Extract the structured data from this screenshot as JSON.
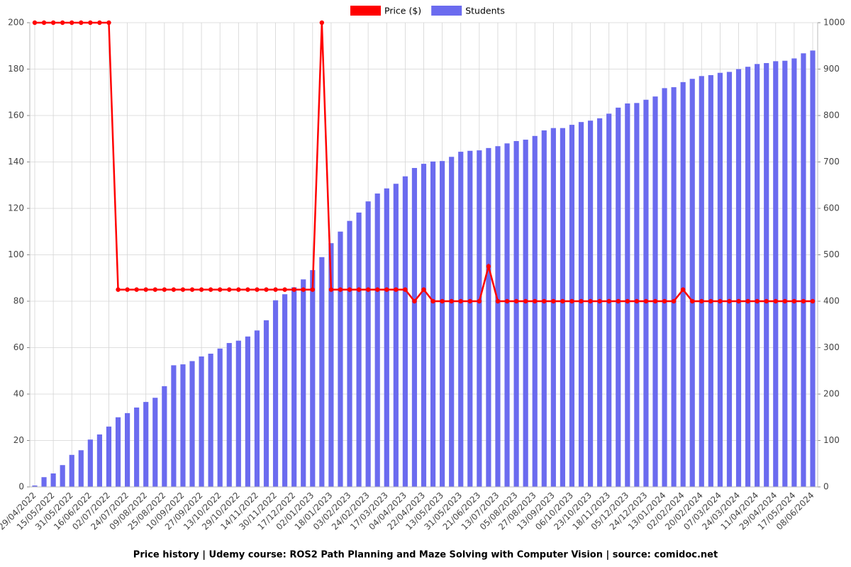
{
  "chart_data": {
    "type": "bar_line",
    "title": "Price history | Udemy course: ROS2 Path Planning and Maze Solving with Computer Vision | source: comidoc.net",
    "categories": [
      "29/04/2022",
      null,
      "15/05/2022",
      null,
      "31/05/2022",
      null,
      "16/06/2022",
      null,
      "02/07/2022",
      null,
      "24/07/2022",
      null,
      "09/08/2022",
      null,
      "25/08/2022",
      null,
      "10/09/2022",
      null,
      "27/09/2022",
      null,
      "13/10/2022",
      null,
      "29/10/2022",
      null,
      "14/11/2022",
      null,
      "30/11/2022",
      null,
      "17/12/2022",
      null,
      "02/01/2023",
      null,
      "18/01/2023",
      null,
      "03/02/2023",
      null,
      "24/02/2023",
      null,
      "17/03/2023",
      null,
      "04/04/2023",
      null,
      "22/04/2023",
      null,
      "13/05/2023",
      null,
      "31/05/2023",
      null,
      "21/06/2023",
      null,
      "13/07/2023",
      null,
      "05/08/2023",
      null,
      "27/08/2023",
      null,
      "13/09/2023",
      null,
      "06/10/2023",
      null,
      "23/10/2023",
      null,
      "18/11/2023",
      null,
      "05/12/2023",
      null,
      "24/12/2023",
      null,
      "13/01/2024",
      null,
      "02/02/2024",
      null,
      "20/02/2024",
      null,
      "07/03/2024",
      null,
      "24/03/2024",
      null,
      "11/04/2024",
      null,
      "29/04/2024",
      null,
      "17/05/2024",
      null,
      "08/06/2024"
    ],
    "series": [
      {
        "name": "Price ($)",
        "type": "line",
        "axis": "y",
        "color": "#ff0000",
        "values": [
          200,
          200,
          200,
          200,
          200,
          200,
          200,
          200,
          200,
          85,
          85,
          85,
          85,
          85,
          85,
          85,
          85,
          85,
          85,
          85,
          85,
          85,
          85,
          85,
          85,
          85,
          85,
          85,
          85,
          85,
          85,
          200,
          85,
          85,
          85,
          85,
          85,
          85,
          85,
          85,
          85,
          80,
          85,
          80,
          80,
          80,
          80,
          80,
          80,
          95,
          80,
          80,
          80,
          80,
          80,
          80,
          80,
          80,
          80,
          80,
          80,
          80,
          80,
          80,
          80,
          80,
          80,
          80,
          80,
          80,
          85,
          80,
          80,
          80,
          80,
          80,
          80,
          80,
          80,
          80,
          80,
          80,
          80,
          80,
          80
        ]
      },
      {
        "name": "Students",
        "type": "bar",
        "axis": "y2",
        "color": "#6b6bef",
        "values": [
          3,
          21,
          29,
          47,
          69,
          79,
          102,
          113,
          130,
          150,
          159,
          171,
          183,
          192,
          217,
          262,
          264,
          271,
          281,
          287,
          298,
          310,
          315,
          324,
          337,
          359,
          402,
          415,
          430,
          447,
          467,
          495,
          525,
          550,
          573,
          591,
          615,
          632,
          643,
          653,
          669,
          687,
          696,
          701,
          702,
          711,
          722,
          724,
          725,
          730,
          734,
          740,
          745,
          748,
          756,
          768,
          773,
          773,
          780,
          786,
          789,
          794,
          804,
          817,
          826,
          827,
          834,
          841,
          859,
          861,
          872,
          879,
          885,
          887,
          892,
          894,
          900,
          905,
          911,
          913,
          917,
          918,
          923,
          934,
          940
        ]
      }
    ],
    "ylim": [
      0,
      200
    ],
    "yticks": [
      0,
      20,
      40,
      60,
      80,
      100,
      120,
      140,
      160,
      180,
      200
    ],
    "y2lim": [
      0,
      1000
    ],
    "y2ticks": [
      0,
      100,
      200,
      300,
      400,
      500,
      600,
      700,
      800,
      900,
      1000
    ],
    "grid": true,
    "legend": "top"
  }
}
